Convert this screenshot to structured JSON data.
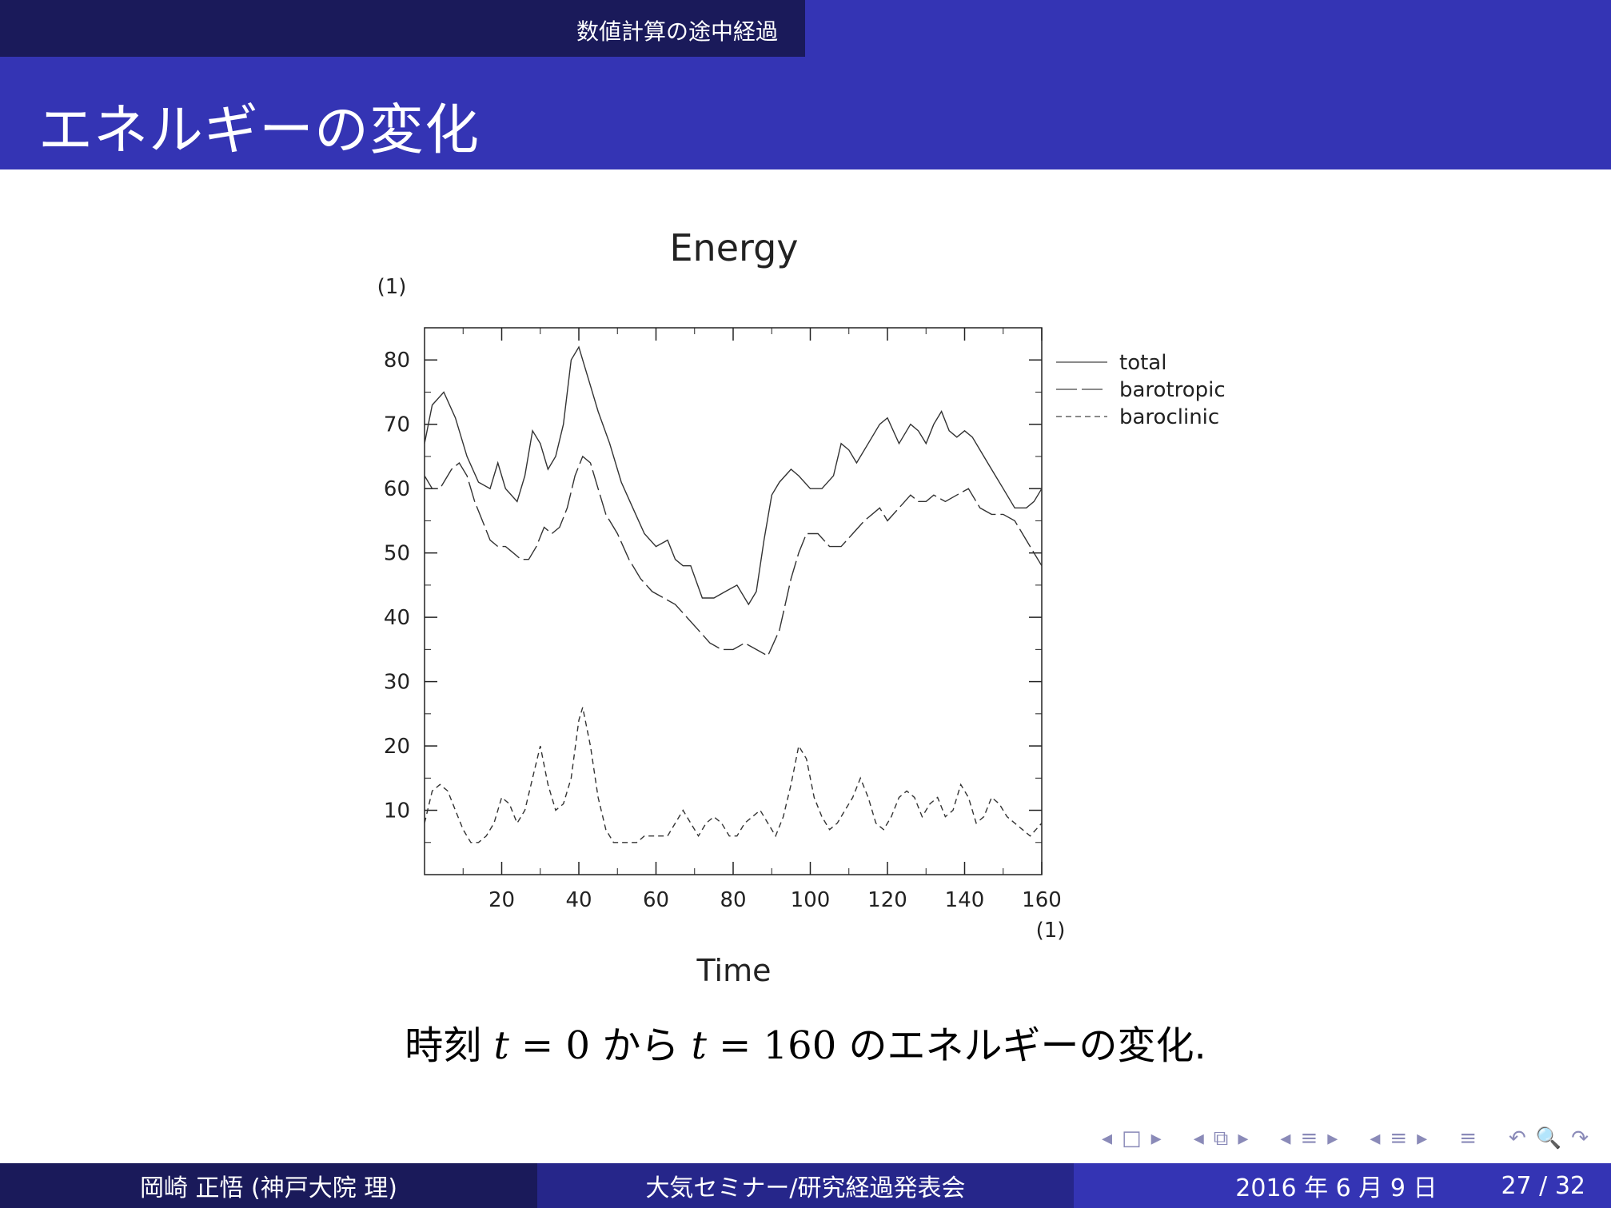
{
  "header": {
    "section": "数値計算の途中経過",
    "title": "エネルギーの変化"
  },
  "caption": {
    "prefix": "時刻 ",
    "var1": "t",
    "eq1": " = 0 ",
    "mid": "から ",
    "var2": "t",
    "eq2": " = 160 ",
    "suffix": "のエネルギーの変化."
  },
  "nav": {
    "icons": [
      "◂",
      "□",
      "▸",
      "◂",
      "⧉",
      "▸",
      "◂",
      "≡",
      "▸",
      "◂",
      "≡",
      "▸",
      "≡",
      "↶",
      "🔍",
      "↷"
    ]
  },
  "footer": {
    "author": "岡崎 正悟 (神戸大院 理)",
    "event": "大気セミナー/研究経過発表会",
    "date": "2016 年 6 月 9 日",
    "page": "27 / 32"
  },
  "chart_data": {
    "type": "line",
    "title": "Energy",
    "xlabel": "Time",
    "ylabel": "",
    "x_unit_label": "(1)",
    "y_unit_label": "(1)",
    "xlim": [
      0,
      160
    ],
    "ylim": [
      0,
      85
    ],
    "xticks": [
      20,
      40,
      60,
      80,
      100,
      120,
      140,
      160
    ],
    "yticks": [
      10,
      20,
      30,
      40,
      50,
      60,
      70,
      80
    ],
    "legend_position": "right",
    "series": [
      {
        "name": "total",
        "style": "solid",
        "x": [
          0,
          2,
          5,
          8,
          11,
          14,
          17,
          19,
          21,
          24,
          26,
          28,
          30,
          32,
          34,
          36,
          38,
          40,
          41,
          43,
          45,
          48,
          51,
          54,
          57,
          60,
          63,
          65,
          67,
          69,
          72,
          75,
          78,
          81,
          84,
          86,
          88,
          90,
          92,
          95,
          97,
          100,
          103,
          106,
          108,
          110,
          112,
          115,
          118,
          120,
          123,
          126,
          128,
          130,
          132,
          134,
          136,
          138,
          140,
          142,
          144,
          146,
          148,
          150,
          153,
          156,
          158,
          160
        ],
        "values": [
          67,
          73,
          75,
          71,
          65,
          61,
          60,
          64,
          60,
          58,
          62,
          69,
          67,
          63,
          65,
          70,
          80,
          82,
          80,
          76,
          72,
          67,
          61,
          57,
          53,
          51,
          52,
          49,
          48,
          48,
          43,
          43,
          44,
          45,
          42,
          44,
          52,
          59,
          61,
          63,
          62,
          60,
          60,
          62,
          67,
          66,
          64,
          67,
          70,
          71,
          67,
          70,
          69,
          67,
          70,
          72,
          69,
          68,
          69,
          68,
          66,
          64,
          62,
          60,
          57,
          57,
          58,
          60
        ]
      },
      {
        "name": "barotropic",
        "style": "long-dash",
        "x": [
          0,
          2,
          4,
          7,
          9,
          11,
          13,
          15,
          17,
          19,
          21,
          23,
          25,
          27,
          29,
          31,
          33,
          35,
          37,
          39,
          41,
          43,
          45,
          47,
          50,
          53,
          56,
          59,
          62,
          65,
          68,
          71,
          74,
          77,
          80,
          83,
          86,
          89,
          92,
          95,
          97,
          99,
          102,
          105,
          108,
          111,
          114,
          116,
          118,
          120,
          123,
          126,
          128,
          130,
          132,
          135,
          138,
          141,
          144,
          147,
          150,
          153,
          156,
          158,
          160
        ],
        "values": [
          62,
          60,
          60,
          63,
          64,
          62,
          58,
          55,
          52,
          51,
          51,
          50,
          49,
          49,
          51,
          54,
          53,
          54,
          57,
          62,
          65,
          64,
          60,
          56,
          53,
          49,
          46,
          44,
          43,
          42,
          40,
          38,
          36,
          35,
          35,
          36,
          35,
          34,
          38,
          46,
          50,
          53,
          53,
          51,
          51,
          53,
          55,
          56,
          57,
          55,
          57,
          59,
          58,
          58,
          59,
          58,
          59,
          60,
          57,
          56,
          56,
          55,
          52,
          50,
          48
        ]
      },
      {
        "name": "baroclinic",
        "style": "dashed",
        "x": [
          0,
          2,
          4,
          6,
          8,
          10,
          12,
          14,
          16,
          18,
          20,
          22,
          24,
          26,
          28,
          30,
          32,
          34,
          36,
          38,
          40,
          41,
          43,
          45,
          47,
          49,
          51,
          53,
          55,
          57,
          59,
          61,
          63,
          65,
          67,
          69,
          71,
          73,
          75,
          77,
          79,
          81,
          83,
          85,
          87,
          89,
          91,
          93,
          95,
          97,
          99,
          101,
          103,
          105,
          107,
          109,
          111,
          113,
          115,
          117,
          119,
          121,
          123,
          125,
          127,
          129,
          131,
          133,
          135,
          137,
          139,
          141,
          143,
          145,
          147,
          149,
          151,
          153,
          155,
          157,
          160
        ],
        "values": [
          8,
          13,
          14,
          13,
          10,
          7,
          5,
          5,
          6,
          8,
          12,
          11,
          8,
          10,
          15,
          20,
          14,
          10,
          11,
          15,
          24,
          26,
          20,
          12,
          7,
          5,
          5,
          5,
          5,
          6,
          6,
          6,
          6,
          8,
          10,
          8,
          6,
          8,
          9,
          8,
          6,
          6,
          8,
          9,
          10,
          8,
          6,
          9,
          14,
          20,
          18,
          12,
          9,
          7,
          8,
          10,
          12,
          15,
          12,
          8,
          7,
          9,
          12,
          13,
          12,
          9,
          11,
          12,
          9,
          10,
          14,
          12,
          8,
          9,
          12,
          11,
          9,
          8,
          7,
          6,
          8
        ]
      }
    ]
  }
}
